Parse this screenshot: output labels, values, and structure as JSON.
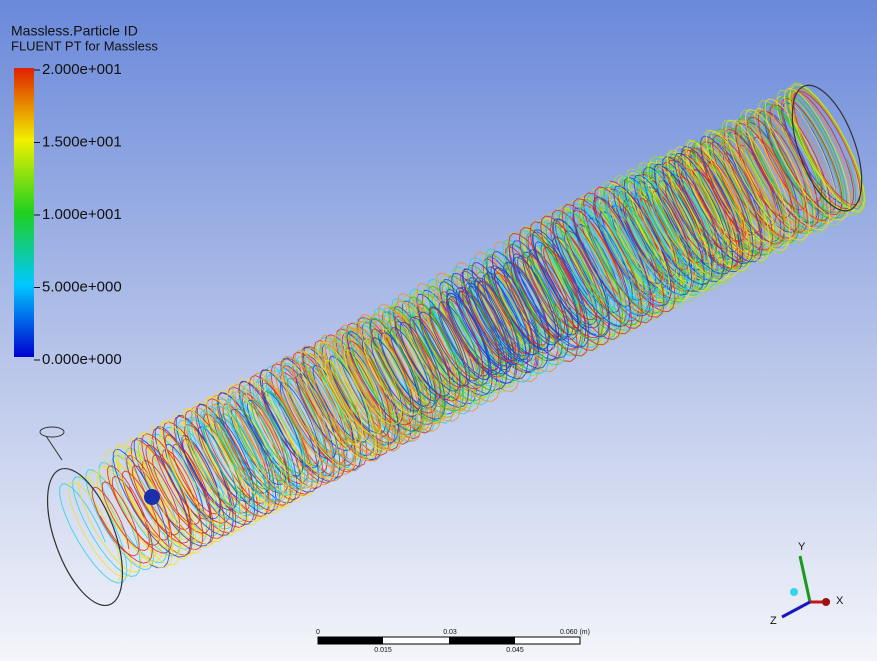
{
  "legend": {
    "title": "Massless.Particle ID",
    "subtitle": "FLUENT PT for Massless",
    "labels": [
      "2.000e+001",
      "1.500e+001",
      "1.000e+001",
      "5.000e+000",
      "0.000e+000"
    ]
  },
  "scale_bar": {
    "top_labels": [
      "0",
      "0.03",
      "0.060 (m)"
    ],
    "bottom_labels": [
      "0.015",
      "0.045"
    ]
  },
  "axes": {
    "x": "X",
    "y": "Y",
    "z": "Z"
  }
}
